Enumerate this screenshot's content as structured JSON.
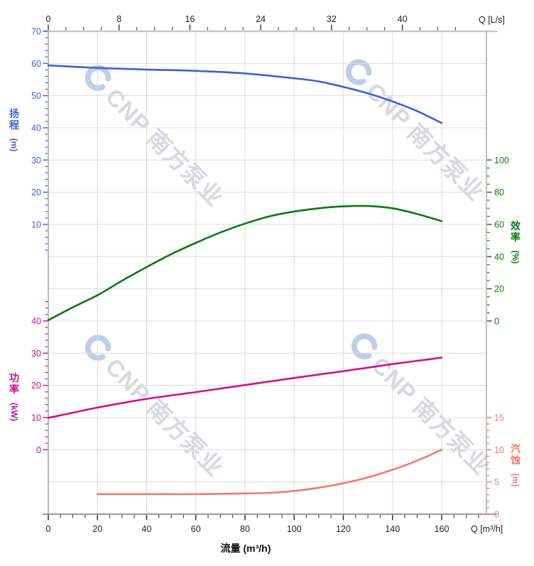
{
  "watermark": {
    "text": "CNP 南方泵业"
  },
  "axes": {
    "top": {
      "unit_label": "Q [L/s]",
      "major_ticks": [
        0,
        8,
        16,
        24,
        32,
        40
      ],
      "minor_step": 2,
      "color": "#222222"
    },
    "bottom": {
      "unit_label": "Q [m³/h]",
      "title": "流量 (m³/h)",
      "major_ticks": [
        0,
        20,
        40,
        60,
        80,
        100,
        120,
        140,
        160
      ],
      "minor_step": 5,
      "color": "#222222"
    },
    "head": {
      "title": "扬程",
      "unit": "(m)",
      "color": "#4163d8",
      "major_ticks": [
        70,
        60,
        50,
        40,
        30,
        20,
        10
      ],
      "minor_step": 2
    },
    "efficiency": {
      "title": "效率",
      "unit": "(%)",
      "color": "#0d7c12",
      "major_ticks": [
        100,
        80,
        60,
        40,
        20,
        0
      ],
      "minor_step": 5
    },
    "power": {
      "title": "功率",
      "unit": "(kW)",
      "color": "#cb1090",
      "major_ticks": [
        40,
        30,
        20,
        10,
        0
      ],
      "minor_step": 2
    },
    "npsh": {
      "title": "汽蚀",
      "unit": "(m)",
      "color": "#f5796b",
      "major_ticks": [
        15,
        10,
        5,
        0
      ],
      "minor_step": 1
    }
  },
  "chart_data": {
    "type": "line",
    "title": "",
    "xlabel": "流量 (m³/h)",
    "x_secondary_label": "Q [L/s]",
    "x_range_m3h": [
      0,
      178
    ],
    "x_max_labeled": 160,
    "lps_to_m3h": 3.6,
    "grid": true,
    "series": [
      {
        "name": "扬程",
        "unit": "m",
        "color": "#3f5fd8",
        "axis": "head",
        "ylim_labeled": [
          10,
          70
        ],
        "top_row": 0,
        "top_value": 70,
        "units_per_row": 10,
        "points": [
          [
            0,
            59.4
          ],
          [
            10,
            59.0
          ],
          [
            20,
            58.6
          ],
          [
            40,
            58.1
          ],
          [
            60,
            57.7
          ],
          [
            80,
            56.9
          ],
          [
            100,
            55.4
          ],
          [
            110,
            54.4
          ],
          [
            120,
            52.7
          ],
          [
            130,
            50.7
          ],
          [
            140,
            48.2
          ],
          [
            150,
            45.2
          ],
          [
            160,
            41.5
          ]
        ]
      },
      {
        "name": "效率",
        "unit": "%",
        "color": "#0a7a0f",
        "axis": "efficiency",
        "ylim_labeled": [
          0,
          100
        ],
        "top_row": 4,
        "top_value": 100,
        "units_per_row": 20,
        "points": [
          [
            0,
            0.5
          ],
          [
            10,
            8.5
          ],
          [
            20,
            16
          ],
          [
            30,
            25
          ],
          [
            40,
            33.5
          ],
          [
            50,
            41.5
          ],
          [
            60,
            48.5
          ],
          [
            70,
            55
          ],
          [
            80,
            60.5
          ],
          [
            90,
            65
          ],
          [
            100,
            68
          ],
          [
            110,
            70
          ],
          [
            120,
            71.2
          ],
          [
            130,
            71.4
          ],
          [
            140,
            70
          ],
          [
            150,
            66.5
          ],
          [
            160,
            62
          ]
        ]
      },
      {
        "name": "功率",
        "unit": "kW",
        "color": "#ce1190",
        "axis": "power",
        "ylim_labeled": [
          0,
          40
        ],
        "top_row": 9,
        "top_value": 40,
        "units_per_row": 10,
        "points": [
          [
            0,
            9.9
          ],
          [
            10,
            11.5
          ],
          [
            20,
            13.1
          ],
          [
            40,
            15.8
          ],
          [
            60,
            17.9
          ],
          [
            80,
            20.1
          ],
          [
            100,
            22.3
          ],
          [
            120,
            24.4
          ],
          [
            140,
            26.6
          ],
          [
            160,
            28.6
          ]
        ]
      },
      {
        "name": "汽蚀",
        "unit": "m",
        "color": "#f5796b",
        "axis": "npsh",
        "ylim_labeled": [
          0,
          15
        ],
        "top_row": 12,
        "top_value": 15,
        "units_per_row": 5,
        "points": [
          [
            20,
            3.1
          ],
          [
            40,
            3.1
          ],
          [
            60,
            3.1
          ],
          [
            80,
            3.2
          ],
          [
            90,
            3.3
          ],
          [
            100,
            3.6
          ],
          [
            110,
            4.1
          ],
          [
            120,
            4.8
          ],
          [
            130,
            5.7
          ],
          [
            140,
            6.9
          ],
          [
            150,
            8.3
          ],
          [
            160,
            10
          ]
        ]
      }
    ]
  }
}
